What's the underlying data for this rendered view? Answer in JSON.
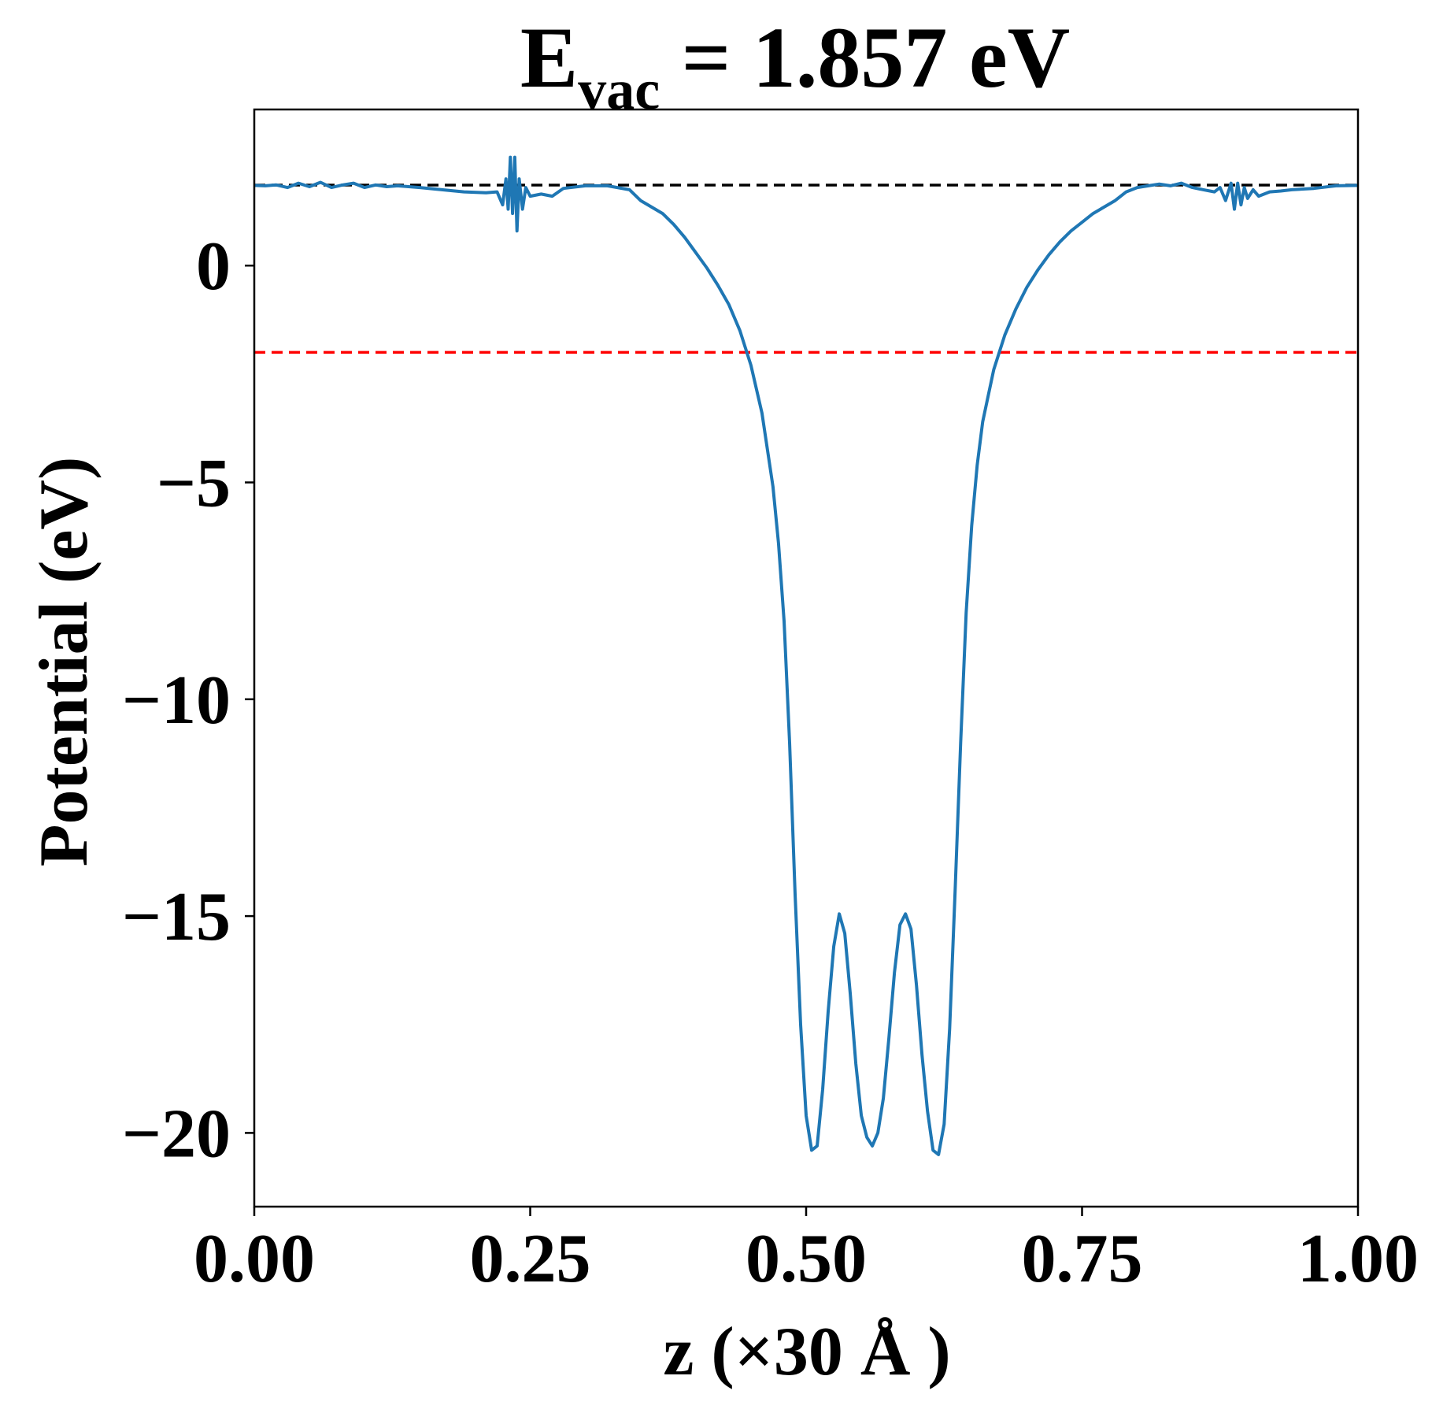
{
  "chart_data": {
    "type": "line",
    "title": {
      "main": "E",
      "subscript": "vac",
      "rest": " = 1.857 eV"
    },
    "xlabel": "z (×30 Å )",
    "ylabel": "Potential (eV)",
    "xlim": [
      0,
      1
    ],
    "ylim": [
      -21.7,
      3.6
    ],
    "x_ticks": [
      {
        "value": 0.0,
        "label": "0.00"
      },
      {
        "value": 0.25,
        "label": "0.25"
      },
      {
        "value": 0.5,
        "label": "0.50"
      },
      {
        "value": 0.75,
        "label": "0.75"
      },
      {
        "value": 1.0,
        "label": "1.00"
      }
    ],
    "y_ticks": [
      {
        "value": 0,
        "label": "0"
      },
      {
        "value": -5,
        "label": "−5"
      },
      {
        "value": -10,
        "label": "−10"
      },
      {
        "value": -15,
        "label": "−15"
      },
      {
        "value": -20,
        "label": "−20"
      }
    ],
    "grid": false,
    "reference_lines": [
      {
        "name": "vacuum-level",
        "y": 1.857,
        "color": "#000000",
        "style": "dashed"
      },
      {
        "name": "fermi-level",
        "y": -2.0,
        "color": "#ff0000",
        "style": "dashed"
      }
    ],
    "series": [
      {
        "color": "#1f77b4",
        "points": [
          [
            0.0,
            1.85
          ],
          [
            0.01,
            1.84
          ],
          [
            0.02,
            1.86
          ],
          [
            0.03,
            1.8
          ],
          [
            0.04,
            1.9
          ],
          [
            0.05,
            1.82
          ],
          [
            0.06,
            1.92
          ],
          [
            0.07,
            1.8
          ],
          [
            0.08,
            1.86
          ],
          [
            0.09,
            1.9
          ],
          [
            0.1,
            1.8
          ],
          [
            0.11,
            1.86
          ],
          [
            0.12,
            1.82
          ],
          [
            0.13,
            1.84
          ],
          [
            0.15,
            1.8
          ],
          [
            0.17,
            1.75
          ],
          [
            0.19,
            1.7
          ],
          [
            0.21,
            1.68
          ],
          [
            0.22,
            1.7
          ],
          [
            0.225,
            1.4
          ],
          [
            0.228,
            2.0
          ],
          [
            0.23,
            1.3
          ],
          [
            0.232,
            2.5
          ],
          [
            0.234,
            1.2
          ],
          [
            0.236,
            2.5
          ],
          [
            0.238,
            0.8
          ],
          [
            0.24,
            2.0
          ],
          [
            0.243,
            1.3
          ],
          [
            0.246,
            1.8
          ],
          [
            0.25,
            1.6
          ],
          [
            0.26,
            1.65
          ],
          [
            0.27,
            1.6
          ],
          [
            0.28,
            1.78
          ],
          [
            0.3,
            1.84
          ],
          [
            0.32,
            1.84
          ],
          [
            0.34,
            1.75
          ],
          [
            0.35,
            1.5
          ],
          [
            0.36,
            1.35
          ],
          [
            0.37,
            1.2
          ],
          [
            0.38,
            0.95
          ],
          [
            0.39,
            0.65
          ],
          [
            0.4,
            0.3
          ],
          [
            0.41,
            -0.05
          ],
          [
            0.42,
            -0.45
          ],
          [
            0.43,
            -0.9
          ],
          [
            0.44,
            -1.5
          ],
          [
            0.45,
            -2.3
          ],
          [
            0.46,
            -3.4
          ],
          [
            0.47,
            -5.1
          ],
          [
            0.475,
            -6.4
          ],
          [
            0.48,
            -8.2
          ],
          [
            0.485,
            -11.0
          ],
          [
            0.49,
            -14.5
          ],
          [
            0.495,
            -17.5
          ],
          [
            0.5,
            -19.6
          ],
          [
            0.505,
            -20.4
          ],
          [
            0.51,
            -20.3
          ],
          [
            0.515,
            -19.0
          ],
          [
            0.52,
            -17.2
          ],
          [
            0.525,
            -15.7
          ],
          [
            0.53,
            -14.95
          ],
          [
            0.535,
            -15.4
          ],
          [
            0.54,
            -16.8
          ],
          [
            0.545,
            -18.4
          ],
          [
            0.55,
            -19.6
          ],
          [
            0.555,
            -20.1
          ],
          [
            0.56,
            -20.3
          ],
          [
            0.565,
            -20.0
          ],
          [
            0.57,
            -19.2
          ],
          [
            0.575,
            -17.8
          ],
          [
            0.58,
            -16.3
          ],
          [
            0.585,
            -15.2
          ],
          [
            0.59,
            -14.95
          ],
          [
            0.595,
            -15.3
          ],
          [
            0.6,
            -16.6
          ],
          [
            0.605,
            -18.2
          ],
          [
            0.61,
            -19.5
          ],
          [
            0.615,
            -20.4
          ],
          [
            0.62,
            -20.5
          ],
          [
            0.625,
            -19.8
          ],
          [
            0.63,
            -17.6
          ],
          [
            0.635,
            -14.4
          ],
          [
            0.64,
            -11.0
          ],
          [
            0.645,
            -8.0
          ],
          [
            0.65,
            -6.0
          ],
          [
            0.655,
            -4.6
          ],
          [
            0.66,
            -3.6
          ],
          [
            0.67,
            -2.4
          ],
          [
            0.68,
            -1.6
          ],
          [
            0.69,
            -1.0
          ],
          [
            0.7,
            -0.5
          ],
          [
            0.71,
            -0.1
          ],
          [
            0.72,
            0.25
          ],
          [
            0.73,
            0.55
          ],
          [
            0.74,
            0.8
          ],
          [
            0.75,
            1.0
          ],
          [
            0.76,
            1.2
          ],
          [
            0.77,
            1.35
          ],
          [
            0.78,
            1.5
          ],
          [
            0.79,
            1.7
          ],
          [
            0.8,
            1.8
          ],
          [
            0.81,
            1.84
          ],
          [
            0.82,
            1.88
          ],
          [
            0.83,
            1.84
          ],
          [
            0.84,
            1.9
          ],
          [
            0.85,
            1.8
          ],
          [
            0.86,
            1.75
          ],
          [
            0.87,
            1.7
          ],
          [
            0.875,
            1.8
          ],
          [
            0.88,
            1.5
          ],
          [
            0.885,
            1.9
          ],
          [
            0.888,
            1.3
          ],
          [
            0.891,
            1.9
          ],
          [
            0.894,
            1.4
          ],
          [
            0.897,
            1.8
          ],
          [
            0.9,
            1.55
          ],
          [
            0.905,
            1.75
          ],
          [
            0.91,
            1.6
          ],
          [
            0.92,
            1.7
          ],
          [
            0.93,
            1.72
          ],
          [
            0.94,
            1.75
          ],
          [
            0.96,
            1.78
          ],
          [
            0.98,
            1.84
          ],
          [
            1.0,
            1.85
          ]
        ]
      }
    ]
  }
}
